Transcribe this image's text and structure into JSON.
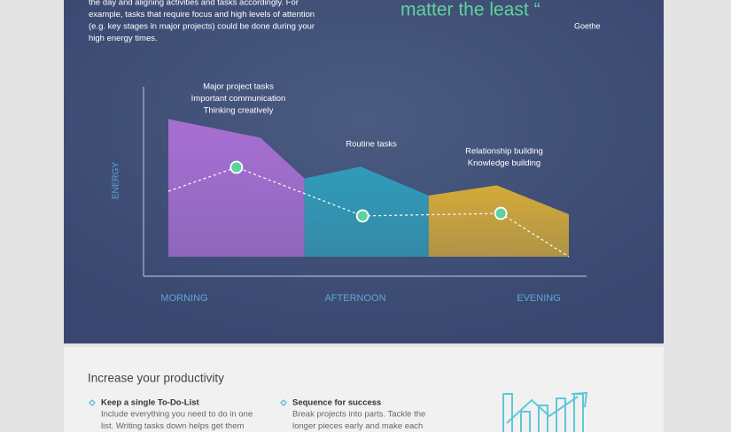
{
  "intro": {
    "lines": [
      "the day and aligning activities and tasks accordingly. For",
      "example, tasks that require focus and high levels of attention",
      "(e.g. key stages in major projects) could be done during your",
      "high energy times."
    ]
  },
  "quote": {
    "text": "matter the least “",
    "author": "Goethe"
  },
  "chart_data": {
    "type": "area",
    "y_label": "ENERGY",
    "categories": [
      "MORNING",
      "AFTERNOON",
      "EVENING"
    ],
    "xlim": [
      0,
      100
    ],
    "ylim": [
      0,
      100
    ],
    "series": [
      {
        "color": "#a86fd3",
        "x": [
          0,
          23,
          34
        ],
        "values": [
          81,
          70,
          46
        ]
      },
      {
        "color": "#2f9cb8",
        "x": [
          34,
          48,
          65
        ],
        "values": [
          46,
          53,
          36
        ]
      },
      {
        "color": "#d4aa38",
        "x": [
          65,
          82,
          100
        ],
        "values": [
          36,
          42,
          25
        ]
      }
    ],
    "energy": {
      "color": "#ffffff",
      "marker_color": "#5fd29c",
      "x": [
        0,
        17,
        48.5,
        83,
        100
      ],
      "values": [
        38.5,
        52.6,
        24,
        25.5,
        0
      ],
      "markers": [
        false,
        true,
        true,
        true,
        false
      ]
    },
    "annotations": [
      {
        "lines": [
          "Major project tasks",
          "Important communication",
          "Thinking creatively"
        ]
      },
      {
        "lines": [
          "Routine tasks"
        ]
      },
      {
        "lines": [
          "Relationship building",
          "Knowledge building"
        ]
      }
    ]
  },
  "productivity": {
    "title": "Increase your productivity",
    "items": [
      {
        "title": "Keep a single To-Do-List",
        "lines": [
          "Include everything you need to do in one",
          "list. Writing tasks down helps  get them"
        ]
      },
      {
        "title": "Sequence for success",
        "lines": [
          "Break projects into parts. Tackle the",
          "longer pieces early and make each"
        ]
      }
    ]
  }
}
